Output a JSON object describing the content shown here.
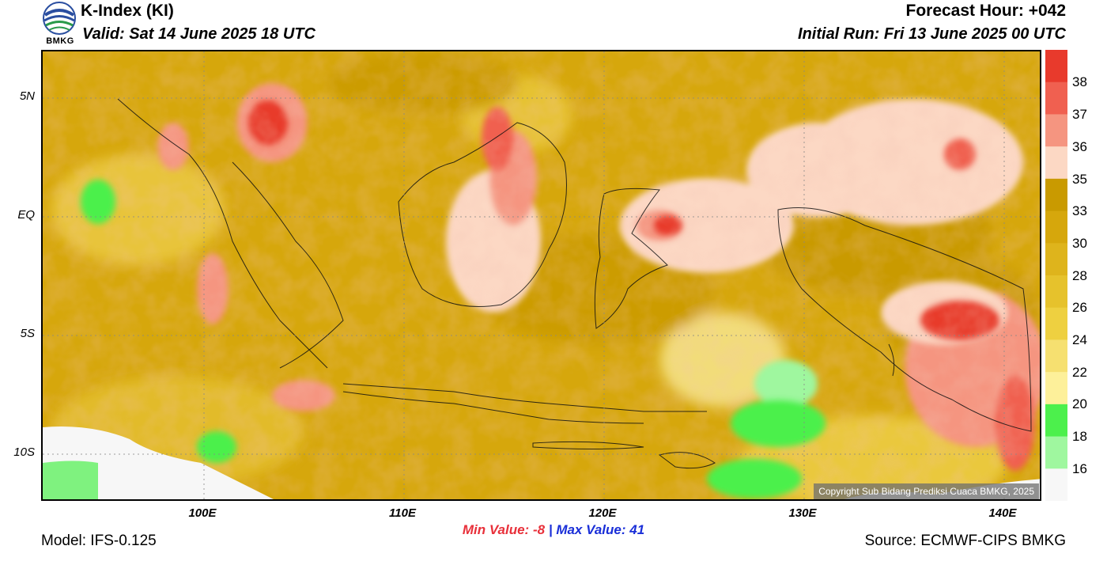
{
  "header": {
    "title": "K-Index (KI)",
    "valid": "Valid: Sat 14 June 2025 18 UTC",
    "forecast_hour": "Forecast Hour: +042",
    "initial_run": "Initial Run: Fri 13 June 2025 00 UTC"
  },
  "logo": {
    "text": "BMKG",
    "icon": "bmkg-logo-icon"
  },
  "map": {
    "lat_labels": [
      "5N",
      "EQ",
      "5S",
      "10S"
    ],
    "lon_labels": [
      "100E",
      "110E",
      "120E",
      "130E",
      "140E"
    ],
    "copyright": "Copyright Sub Bidang Prediksi Cuaca BMKG, 2025"
  },
  "colorbar": {
    "labels": [
      "38",
      "37",
      "36",
      "35",
      "33",
      "30",
      "28",
      "26",
      "24",
      "22",
      "20",
      "18",
      "16"
    ],
    "colors": [
      "#e83a2c",
      "#f06050",
      "#f59580",
      "#fcd8c4",
      "#c99a00",
      "#d6a70c",
      "#deb41c",
      "#e6c22c",
      "#eed040",
      "#f6e070",
      "#fdf09a",
      "#4cf04c",
      "#9ff79f",
      "#f7f7f7"
    ]
  },
  "stats": {
    "min_label": "Min Value:",
    "min_value": "-8",
    "separator": "|",
    "max_label": "Max Value:",
    "max_value": "41"
  },
  "footer": {
    "model": "Model: IFS-0.125",
    "source": "Source: ECMWF-CIPS BMKG"
  }
}
